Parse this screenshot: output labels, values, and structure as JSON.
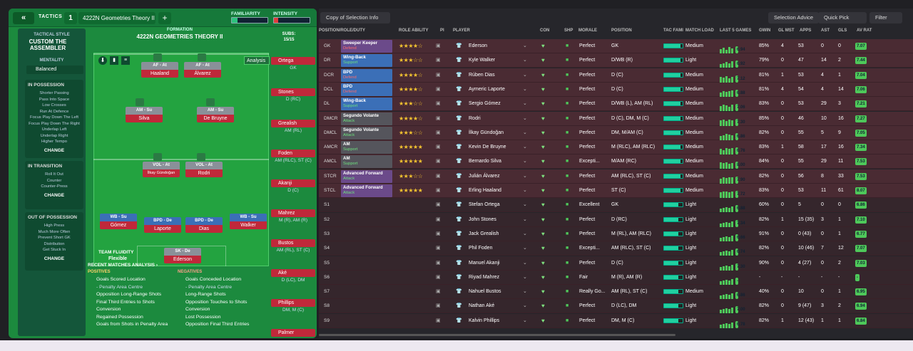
{
  "left": {
    "back": "«",
    "tactics": "TACTICS",
    "num": "1",
    "tactic_name": "4222N Geometries Theory II",
    "plus": "+",
    "familiarity": "FAMILIARITY",
    "intensity": "INTENSITY",
    "tactical_style_lbl": "TACTICAL STYLE",
    "tactical_style": "CUSTOM THE ASSEMBLER",
    "mentality_lbl": "MENTALITY",
    "mentality": "Balanced",
    "in_possession": {
      "title": "IN POSSESSION",
      "lines": [
        "Shorter Passing",
        "Pass Into Space",
        "Low Crosses",
        "Run At Defence",
        "Focus Play Down The Left",
        "Focus Play Down The Right",
        "Underlap Left",
        "Underlap Right",
        "Higher Tempo"
      ],
      "change": "CHANGE"
    },
    "in_transition": {
      "title": "IN TRANSITION",
      "lines": [
        "Roll It Out",
        "Counter",
        "Counter-Press"
      ],
      "change": "CHANGE"
    },
    "out_of_possession": {
      "title": "OUT OF POSSESSION",
      "lines": [
        "High Press",
        "Much More Often",
        "Prevent Short GK",
        "Distribution",
        "Get Stuck In"
      ],
      "change": "CHANGE"
    },
    "formation_lbl": "FORMATION",
    "formation": "4222N GEOMETRIES THEORY II",
    "analysis_btn": "Analysis",
    "subs_lbl": "SUBS:",
    "subs_count": "15/15",
    "team_fluidity_lbl": "TEAM FLUIDITY",
    "team_fluidity": "Flexible",
    "players": [
      {
        "role": "AF - At",
        "name": "Haaland"
      },
      {
        "role": "AF - At",
        "name": "Álvarez"
      },
      {
        "role": "AM - Su",
        "name": "Silva"
      },
      {
        "role": "AM - Su",
        "name": "De Bruyne"
      },
      {
        "role": "VOL - At",
        "name": "İlkay Gündoğan"
      },
      {
        "role": "VOL - At",
        "name": "Rodri"
      },
      {
        "role": "WB - Su",
        "name": "Gómez"
      },
      {
        "role": "BPD - De",
        "name": "Laporte"
      },
      {
        "role": "BPD - De",
        "name": "Dias"
      },
      {
        "role": "WB - Su",
        "name": "Walker"
      },
      {
        "role": "SK - De",
        "name": "Ederson"
      }
    ],
    "subs": [
      {
        "name": "Ortega",
        "pos": "GK"
      },
      {
        "name": "Stones",
        "pos": "D (RC)"
      },
      {
        "name": "Grealish",
        "pos": "AM (RL)"
      },
      {
        "name": "Foden",
        "pos": "AM (RLC), ST (C)"
      },
      {
        "name": "Akanji",
        "pos": "D (C)"
      },
      {
        "name": "Mahrez",
        "pos": "M (R), AM (R)"
      },
      {
        "name": "Bustos",
        "pos": "AM (RL), ST (C)"
      },
      {
        "name": "Aké",
        "pos": "D (LC), DM"
      },
      {
        "name": "Phillips",
        "pos": "DM, M (C)"
      },
      {
        "name": "Palmer",
        "pos": ""
      }
    ],
    "recent": "RECENT MATCHES ANALYSIS ›",
    "positives_lbl": "POSITIVES",
    "negatives_lbl": "NEGATIVES",
    "positives": [
      "Goals Scored Location",
      "- Penalty Area Centre",
      "Opposition Long-Range Shots",
      "Final Third Entries to Shots",
      "Conversion",
      "Regained Possession",
      "Goals from Shots in Penalty Area"
    ],
    "negatives": [
      "Goals Conceded Location",
      "- Penalty Area Centre",
      "Long-Range Shots",
      "Opposition Touches to Shots",
      "Conversion",
      "Lost Possession",
      "Opposition Final Third Entries"
    ]
  },
  "right": {
    "copy": "Copy of Selection Info",
    "selection_advice": "Selection Advice",
    "quick_pick": "Quick Pick",
    "filter": "Filter",
    "headers": [
      "POSITION/ROLE/DUTY",
      "ROLE ABILITY",
      "PI",
      "PLAYER",
      "CON",
      "SHP",
      "MORALE",
      "POSITION",
      "TAC FAMI",
      "MATCH LOAD",
      "LAST 5 GAMES",
      "GWIN",
      "GL MST",
      "APPS",
      "AST",
      "GLS",
      "AV RAT"
    ],
    "rows": [
      {
        "pos": "GK",
        "role": "Sweeper Keeper",
        "duty": "Defend",
        "stars": "★★★★☆",
        "player": "Ederson",
        "morale": "Perfect",
        "position": "GK",
        "load": "Medium",
        "rat5": "6.94",
        "gwin": "85%",
        "glmst": "4",
        "apps": "53",
        "ast": "0",
        "gls": "0",
        "av": "7.07",
        "c": "purple"
      },
      {
        "pos": "DR",
        "role": "Wing-Back",
        "duty": "Support",
        "stars": "★★★☆☆",
        "player": "Kyle Walker",
        "morale": "Perfect",
        "position": "D/WB (R)",
        "load": "Light",
        "rat5": "6.92",
        "gwin": "79%",
        "glmst": "0",
        "apps": "47",
        "ast": "14",
        "gls": "2",
        "av": "7.44",
        "c": "blue"
      },
      {
        "pos": "DCR",
        "role": "BPD",
        "duty": "Defend",
        "stars": "★★★★☆",
        "player": "Rúben Dias",
        "morale": "Perfect",
        "position": "D (C)",
        "load": "Medium",
        "rat5": "7.12",
        "gwin": "81%",
        "glmst": "1",
        "apps": "53",
        "ast": "4",
        "gls": "1",
        "av": "7.04",
        "c": "blue"
      },
      {
        "pos": "DCL",
        "role": "BPD",
        "duty": "Defend",
        "stars": "★★★★☆",
        "player": "Aymeric Laporte",
        "morale": "Perfect",
        "position": "D (C)",
        "load": "Medium",
        "rat5": "6.88",
        "gwin": "81%",
        "glmst": "4",
        "apps": "54",
        "ast": "4",
        "gls": "14",
        "av": "7.06",
        "c": "blue"
      },
      {
        "pos": "DL",
        "role": "Wing-Back",
        "duty": "Support",
        "stars": "★★★☆☆",
        "player": "Sergio Gómez",
        "morale": "Perfect",
        "position": "D/WB (L), AM (RL)",
        "load": "Medium",
        "rat5": "7.06",
        "gwin": "83%",
        "glmst": "0",
        "apps": "53",
        "ast": "29",
        "gls": "3",
        "av": "7.21",
        "c": "blue"
      },
      {
        "pos": "DMCR",
        "role": "Segundo Volante",
        "duty": "Attack",
        "stars": "★★★★☆",
        "player": "Rodri",
        "morale": "Perfect",
        "position": "D (C), DM, M (C)",
        "load": "Medium",
        "rat5": "7.30",
        "gwin": "85%",
        "glmst": "0",
        "apps": "46",
        "ast": "10",
        "gls": "16",
        "av": "7.27",
        "c": "grey"
      },
      {
        "pos": "DMCL",
        "role": "Segundo Volante",
        "duty": "Attack",
        "stars": "★★★☆☆",
        "player": "İlkay Gündoğan",
        "morale": "Perfect",
        "position": "DM, M/AM (C)",
        "load": "Medium",
        "rat5": "6.86",
        "gwin": "82%",
        "glmst": "0",
        "apps": "55",
        "ast": "5",
        "gls": "9",
        "av": "7.05",
        "c": "grey"
      },
      {
        "pos": "AMCR",
        "role": "AM",
        "duty": "Support",
        "stars": "★★★★★",
        "player": "Kevin De Bruyne",
        "morale": "Perfect",
        "position": "M (RLC), AM (RLC)",
        "load": "Medium",
        "rat5": "6.76",
        "gwin": "83%",
        "glmst": "1",
        "apps": "58",
        "ast": "17",
        "gls": "16",
        "av": "7.34",
        "c": "none"
      },
      {
        "pos": "AMCL",
        "role": "AM",
        "duty": "Support",
        "stars": "★★★★★",
        "player": "Bernardo Silva",
        "morale": "Excepti...",
        "position": "M/AM (RC)",
        "load": "Medium",
        "rat5": "8.00",
        "gwin": "84%",
        "glmst": "0",
        "apps": "55",
        "ast": "29",
        "gls": "11",
        "av": "7.53",
        "c": "none"
      },
      {
        "pos": "STCR",
        "role": "Advanced Forward",
        "duty": "Attack",
        "stars": "★★★☆☆",
        "player": "Julián Álvarez",
        "morale": "Perfect",
        "position": "AM (RLC), ST (C)",
        "load": "Medium",
        "rat5": "7.90",
        "gwin": "82%",
        "glmst": "0",
        "apps": "56",
        "ast": "8",
        "gls": "33",
        "av": "7.53",
        "c": "purple"
      },
      {
        "pos": "STCL",
        "role": "Advanced Forward",
        "duty": "Attack",
        "stars": "★★★★★",
        "player": "Erling Haaland",
        "morale": "Perfect",
        "position": "ST (C)",
        "load": "Medium",
        "rat5": "7.72",
        "gwin": "83%",
        "glmst": "0",
        "apps": "53",
        "ast": "11",
        "gls": "61",
        "av": "8.07",
        "c": "purple"
      },
      {
        "pos": "S1",
        "player": "Stefan Ortega",
        "morale": "Excellent",
        "position": "GK",
        "load": "Light",
        "rat5": "6.88",
        "gwin": "60%",
        "glmst": "0",
        "apps": "5",
        "ast": "0",
        "gls": "0",
        "av": "6.86"
      },
      {
        "pos": "S2",
        "player": "John Stones",
        "morale": "Perfect",
        "position": "D (RC)",
        "load": "Light",
        "rat5": "7.34",
        "gwin": "82%",
        "glmst": "1",
        "apps": "15 (35)",
        "ast": "3",
        "gls": "1",
        "av": "7.10"
      },
      {
        "pos": "S3",
        "player": "Jack Grealish",
        "morale": "Perfect",
        "position": "M (RL), AM (RLC)",
        "load": "Light",
        "rat5": "6.66",
        "gwin": "91%",
        "glmst": "0",
        "apps": "0 (43)",
        "ast": "0",
        "gls": "1",
        "av": "6.77"
      },
      {
        "pos": "S4",
        "player": "Phil Foden",
        "morale": "Excepti...",
        "position": "AM (RLC), ST (C)",
        "load": "Light",
        "rat5": "6.74",
        "gwin": "82%",
        "glmst": "0",
        "apps": "10 (46)",
        "ast": "7",
        "gls": "12",
        "av": "7.07"
      },
      {
        "pos": "S5",
        "player": "Manuel Akanji",
        "morale": "Perfect",
        "position": "D (C)",
        "load": "Light",
        "rat5": "7.30",
        "gwin": "90%",
        "glmst": "0",
        "apps": "4 (27)",
        "ast": "0",
        "gls": "2",
        "av": "7.03"
      },
      {
        "pos": "S6",
        "player": "Riyad Mahrez",
        "morale": "Fair",
        "position": "M (R), AM (R)",
        "load": "Light",
        "rat5": "-",
        "gwin": "-",
        "glmst": "-",
        "apps": "-",
        "ast": "-",
        "gls": "-",
        "av": "-"
      },
      {
        "pos": "S7",
        "player": "Nahuel Bustos",
        "morale": "Really Go...",
        "position": "AM (RL), ST (C)",
        "load": "Medium",
        "rat5": "6.86",
        "gwin": "40%",
        "glmst": "0",
        "apps": "10",
        "ast": "0",
        "gls": "1",
        "av": "6.95"
      },
      {
        "pos": "S8",
        "player": "Nathan Aké",
        "morale": "Perfect",
        "position": "D (LC), DM",
        "load": "Light",
        "rat5": "7.00",
        "gwin": "82%",
        "glmst": "0",
        "apps": "9 (47)",
        "ast": "3",
        "gls": "2",
        "av": "6.94"
      },
      {
        "pos": "S9",
        "player": "Kalvin Phillips",
        "morale": "Perfect",
        "position": "DM, M (C)",
        "load": "Light",
        "rat5": "6.78",
        "gwin": "82%",
        "glmst": "1",
        "apps": "12 (43)",
        "ast": "1",
        "gls": "1",
        "av": "6.84"
      }
    ]
  }
}
